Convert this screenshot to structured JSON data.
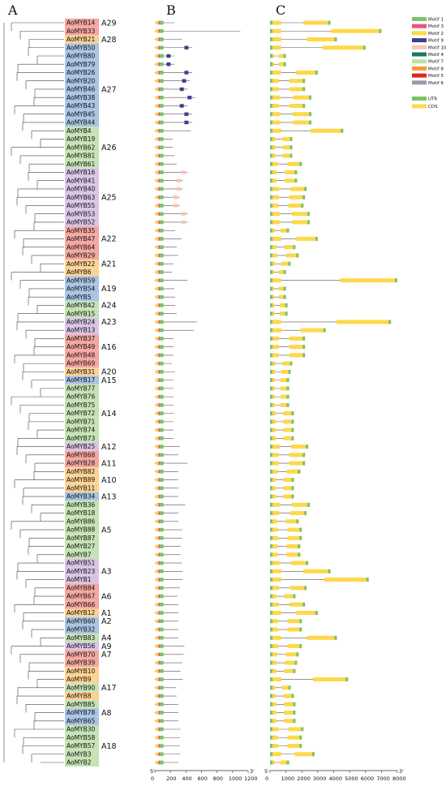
{
  "panels": {
    "a": "A",
    "b": "B",
    "c": "C"
  },
  "colors": {
    "group_red": "#f4a7a0",
    "group_orange": "#fcd294",
    "group_blue": "#a9c4e4",
    "group_green": "#c5e3b5",
    "group_purple": "#d9c4e6",
    "utr": "#7cc36a",
    "cds": "#ffd84a",
    "intron": "#555555",
    "tree": "#444444"
  },
  "genes": [
    {
      "name": "AoMYB14",
      "color": "group_red"
    },
    {
      "name": "AoMYB33",
      "color": "group_red"
    },
    {
      "name": "AoMYB21",
      "color": "group_orange"
    },
    {
      "name": "AoMYB50",
      "color": "group_blue"
    },
    {
      "name": "AoMYB80",
      "color": "group_blue"
    },
    {
      "name": "AoMYB79",
      "color": "group_blue"
    },
    {
      "name": "AoMYB26",
      "color": "group_blue"
    },
    {
      "name": "AoMYB20",
      "color": "group_blue"
    },
    {
      "name": "AoMYB46",
      "color": "group_blue"
    },
    {
      "name": "AoMYB38",
      "color": "group_blue"
    },
    {
      "name": "AoMYB43",
      "color": "group_blue"
    },
    {
      "name": "AoMYB45",
      "color": "group_blue"
    },
    {
      "name": "AoMYB44",
      "color": "group_blue"
    },
    {
      "name": "AoMYB4",
      "color": "group_green"
    },
    {
      "name": "AoMYB19",
      "color": "group_green"
    },
    {
      "name": "AoMYB62",
      "color": "group_green"
    },
    {
      "name": "AoMYB81",
      "color": "group_green"
    },
    {
      "name": "AoMYB61",
      "color": "group_green"
    },
    {
      "name": "AoMYB16",
      "color": "group_purple"
    },
    {
      "name": "AoMYB41",
      "color": "group_purple"
    },
    {
      "name": "AoMYB40",
      "color": "group_purple"
    },
    {
      "name": "AoMYB63",
      "color": "group_purple"
    },
    {
      "name": "AoMYB55",
      "color": "group_purple"
    },
    {
      "name": "AoMYB53",
      "color": "group_purple"
    },
    {
      "name": "AoMYB52",
      "color": "group_purple"
    },
    {
      "name": "AoMYB35",
      "color": "group_red"
    },
    {
      "name": "AoMYB47",
      "color": "group_red"
    },
    {
      "name": "AoMYB64",
      "color": "group_red"
    },
    {
      "name": "AoMYB29",
      "color": "group_red"
    },
    {
      "name": "AoMYB22",
      "color": "group_orange"
    },
    {
      "name": "AoMYB6",
      "color": "group_orange"
    },
    {
      "name": "AoMYB59",
      "color": "group_blue"
    },
    {
      "name": "AoMYB54",
      "color": "group_blue"
    },
    {
      "name": "AoMYB5",
      "color": "group_blue"
    },
    {
      "name": "AoMYB42",
      "color": "group_green"
    },
    {
      "name": "AoMYB15",
      "color": "group_green"
    },
    {
      "name": "AoMYB24",
      "color": "group_purple"
    },
    {
      "name": "AoMYB13",
      "color": "group_purple"
    },
    {
      "name": "AoMYB37",
      "color": "group_red"
    },
    {
      "name": "AoMYB49",
      "color": "group_red"
    },
    {
      "name": "AoMYB48",
      "color": "group_red"
    },
    {
      "name": "AoMYB69",
      "color": "group_red"
    },
    {
      "name": "AoMYB31",
      "color": "group_orange"
    },
    {
      "name": "AoMYB17",
      "color": "group_blue"
    },
    {
      "name": "AoMYB77",
      "color": "group_green"
    },
    {
      "name": "AoMYB76",
      "color": "group_green"
    },
    {
      "name": "AoMYB75",
      "color": "group_green"
    },
    {
      "name": "AoMYB72",
      "color": "group_green"
    },
    {
      "name": "AoMYB71",
      "color": "group_green"
    },
    {
      "name": "AoMYB74",
      "color": "group_green"
    },
    {
      "name": "AoMYB73",
      "color": "group_green"
    },
    {
      "name": "AoMYB25",
      "color": "group_purple"
    },
    {
      "name": "AoMYB68",
      "color": "group_red"
    },
    {
      "name": "AoMYB28",
      "color": "group_red"
    },
    {
      "name": "AoMYB82",
      "color": "group_orange"
    },
    {
      "name": "AoMYB89",
      "color": "group_orange"
    },
    {
      "name": "AoMYB11",
      "color": "group_orange"
    },
    {
      "name": "AoMYB34",
      "color": "group_blue"
    },
    {
      "name": "AoMYB36",
      "color": "group_green"
    },
    {
      "name": "AoMYB18",
      "color": "group_green"
    },
    {
      "name": "AoMYB86",
      "color": "group_green"
    },
    {
      "name": "AoMYB88",
      "color": "group_green"
    },
    {
      "name": "AoMYB87",
      "color": "group_green"
    },
    {
      "name": "AoMYB27",
      "color": "group_green"
    },
    {
      "name": "AoMYB7",
      "color": "group_green"
    },
    {
      "name": "AoMYB51",
      "color": "group_purple"
    },
    {
      "name": "AoMYB23",
      "color": "group_purple"
    },
    {
      "name": "AoMYB1",
      "color": "group_purple"
    },
    {
      "name": "AoMYB84",
      "color": "group_red"
    },
    {
      "name": "AoMYB67",
      "color": "group_red"
    },
    {
      "name": "AoMYB66",
      "color": "group_red"
    },
    {
      "name": "AoMYB12",
      "color": "group_orange"
    },
    {
      "name": "AoMYB60",
      "color": "group_blue"
    },
    {
      "name": "AoMYB32",
      "color": "group_blue"
    },
    {
      "name": "AoMYB83",
      "color": "group_green"
    },
    {
      "name": "AoMYB56",
      "color": "group_purple"
    },
    {
      "name": "AoMYB70",
      "color": "group_red"
    },
    {
      "name": "AoMYB39",
      "color": "group_red"
    },
    {
      "name": "AoMYB10",
      "color": "group_orange"
    },
    {
      "name": "AoMYB9",
      "color": "group_orange"
    },
    {
      "name": "AoMYB90",
      "color": "group_green"
    },
    {
      "name": "AoMYB8",
      "color": "group_orange"
    },
    {
      "name": "AoMYB85",
      "color": "group_green"
    },
    {
      "name": "AoMYB78",
      "color": "group_blue"
    },
    {
      "name": "AoMYB65",
      "color": "group_blue"
    },
    {
      "name": "AoMYB30",
      "color": "group_green"
    },
    {
      "name": "AoMYB58",
      "color": "group_green"
    },
    {
      "name": "AoMYB57",
      "color": "group_green"
    },
    {
      "name": "AoMYB3",
      "color": "group_green"
    },
    {
      "name": "AoMYB2",
      "color": "group_green"
    }
  ],
  "groups": [
    {
      "label": "A29",
      "row": 0
    },
    {
      "label": "A28",
      "row": 2
    },
    {
      "label": "A27",
      "row": 8
    },
    {
      "label": "A26",
      "row": 15
    },
    {
      "label": "A25",
      "row": 21
    },
    {
      "label": "A22",
      "row": 26
    },
    {
      "label": "A21",
      "row": 29
    },
    {
      "label": "A19",
      "row": 32
    },
    {
      "label": "A24",
      "row": 34
    },
    {
      "label": "A23",
      "row": 36
    },
    {
      "label": "A16",
      "row": 39
    },
    {
      "label": "A20",
      "row": 42
    },
    {
      "label": "A15",
      "row": 43
    },
    {
      "label": "A14",
      "row": 47
    },
    {
      "label": "A12",
      "row": 51
    },
    {
      "label": "A11",
      "row": 53
    },
    {
      "label": "A10",
      "row": 55
    },
    {
      "label": "A13",
      "row": 57
    },
    {
      "label": "A5",
      "row": 61
    },
    {
      "label": "A3",
      "row": 66
    },
    {
      "label": "A6",
      "row": 69
    },
    {
      "label": "A1",
      "row": 71
    },
    {
      "label": "A2",
      "row": 72
    },
    {
      "label": "A4",
      "row": 74
    },
    {
      "label": "A9",
      "row": 75
    },
    {
      "label": "A7",
      "row": 76
    },
    {
      "label": "A17",
      "row": 80
    },
    {
      "label": "A8",
      "row": 83
    },
    {
      "label": "A18",
      "row": 87
    }
  ],
  "axis_b": {
    "start": "5'",
    "end": "3'",
    "ticks": [
      "0",
      "200",
      "400",
      "600",
      "800",
      "1000",
      "1200"
    ]
  },
  "axis_c": {
    "start": "5'",
    "end": "3'",
    "ticks": [
      "0",
      "1000",
      "2000",
      "3000",
      "4000",
      "5000",
      "6000",
      "7000",
      "8000"
    ]
  },
  "legend_motifs": [
    {
      "label": "Motif 1",
      "color": "#7cc36a"
    },
    {
      "label": "Motif 3",
      "color": "#e8557a"
    },
    {
      "label": "Motif 2",
      "color": "#ffd84a"
    },
    {
      "label": "Motif 9",
      "color": "#3b3f8c"
    },
    {
      "label": "Motif 10",
      "color": "#f6c7b5"
    },
    {
      "label": "Motif 4",
      "color": "#1d7a5e"
    },
    {
      "label": "Motif 7",
      "color": "#b9e3a0"
    },
    {
      "label": "Motif 8",
      "color": "#f39c3a"
    },
    {
      "label": "Motif 5",
      "color": "#e02424"
    },
    {
      "label": "Motif 6",
      "color": "#9a9ab0"
    }
  ],
  "legend_structure": [
    {
      "label": "UTR",
      "color": "#7cc36a"
    },
    {
      "label": "CDS",
      "color": "#ffd84a"
    }
  ],
  "gene_lengths": [
    3800,
    7000,
    4200,
    6000,
    1000,
    1000,
    3000,
    2200,
    2200,
    2600,
    2200,
    2600,
    2600,
    4600,
    1400,
    1400,
    1400,
    2000,
    1700,
    1700,
    2300,
    2200,
    2100,
    2500,
    2500,
    1200,
    3000,
    1600,
    1800,
    1300,
    1000,
    8000,
    1000,
    1000,
    1100,
    1100,
    7600,
    3500,
    2200,
    2200,
    2200,
    1400,
    1300,
    1200,
    1200,
    1200,
    1200,
    1500,
    1500,
    1500,
    1500,
    2400,
    2200,
    2200,
    1900,
    1500,
    1500,
    1500,
    2500,
    2300,
    1800,
    2000,
    2000,
    1900,
    1900,
    2400,
    3800,
    6200,
    2300,
    1600,
    2200,
    3000,
    2000,
    2000,
    4200,
    2000,
    1800,
    1700,
    1600,
    4900,
    1300,
    1500,
    1600,
    1600,
    1600,
    2100,
    2000,
    2000,
    2800,
    1200
  ],
  "protein_lengths": [
    250,
    1100,
    350,
    480,
    250,
    250,
    480,
    450,
    420,
    520,
    420,
    480,
    480,
    460,
    230,
    230,
    250,
    280,
    420,
    360,
    360,
    320,
    320,
    420,
    420,
    260,
    340,
    280,
    300,
    240,
    220,
    420,
    250,
    260,
    260,
    280,
    540,
    500,
    240,
    240,
    240,
    220,
    260,
    240,
    240,
    240,
    240,
    240,
    240,
    240,
    240,
    320,
    300,
    420,
    300,
    300,
    300,
    300,
    390,
    300,
    300,
    350,
    350,
    330,
    330,
    350,
    360,
    360,
    320,
    290,
    300,
    300,
    300,
    300,
    300,
    380,
    370,
    350,
    330,
    360,
    270,
    280,
    300,
    300,
    300,
    330,
    320,
    320,
    330,
    300
  ]
}
